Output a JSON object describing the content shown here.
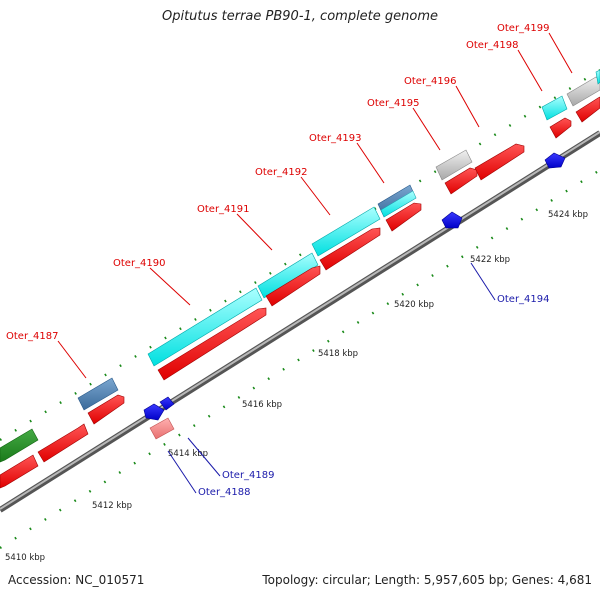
{
  "title": "Opitutus terrae PB90-1, complete genome",
  "footer": {
    "accession": "Accession: NC_010571",
    "summary": "Topology: circular; Length: 5,957,605 bp; Genes: 4,681"
  },
  "colors": {
    "forward_cds": "#ff0000",
    "reverse_cds": "#1010ee",
    "label_forward": "#dd0000",
    "label_reverse": "#1a1aaa",
    "backbone": "#888888",
    "tick": "#1a8a1a"
  },
  "ticks": [
    {
      "label": "5410 kbp"
    },
    {
      "label": "5412 kbp"
    },
    {
      "label": "5414 kbp"
    },
    {
      "label": "5416 kbp"
    },
    {
      "label": "5418 kbp"
    },
    {
      "label": "5420 kbp"
    },
    {
      "label": "5422 kbp"
    },
    {
      "label": "5424 kbp"
    }
  ],
  "gene_labels": [
    {
      "text": "Oter_4187",
      "strand": "forward"
    },
    {
      "text": "Oter_4190",
      "strand": "forward"
    },
    {
      "text": "Oter_4191",
      "strand": "forward"
    },
    {
      "text": "Oter_4192",
      "strand": "forward"
    },
    {
      "text": "Oter_4193",
      "strand": "forward"
    },
    {
      "text": "Oter_4195",
      "strand": "forward"
    },
    {
      "text": "Oter_4196",
      "strand": "forward"
    },
    {
      "text": "Oter_4198",
      "strand": "forward"
    },
    {
      "text": "Oter_4199",
      "strand": "forward"
    },
    {
      "text": "Oter_4194",
      "strand": "reverse"
    },
    {
      "text": "Oter_4189",
      "strand": "reverse"
    },
    {
      "text": "Oter_4188",
      "strand": "reverse"
    }
  ]
}
